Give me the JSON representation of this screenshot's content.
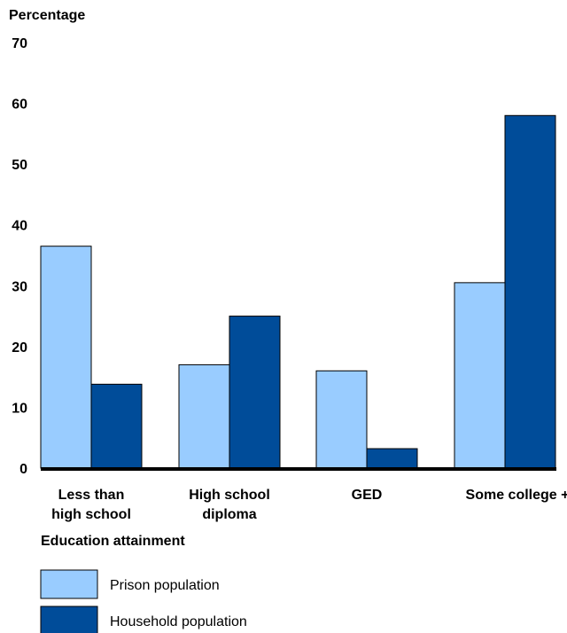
{
  "chart_data": {
    "type": "bar",
    "ylabel": "Percentage",
    "xlabel": "Education attainment",
    "ylim": [
      0,
      70
    ],
    "yticks": [
      0,
      10,
      20,
      30,
      40,
      50,
      60,
      70
    ],
    "grid": false,
    "legend_position": "bottom-left",
    "categories": [
      [
        "Less than",
        "high school"
      ],
      [
        "High school",
        "diploma"
      ],
      [
        "GED"
      ],
      [
        "Some college +"
      ]
    ],
    "series": [
      {
        "name": "Prison population",
        "color": "#99ccff",
        "values": [
          36.5,
          17,
          16,
          30.5
        ]
      },
      {
        "name": "Household population",
        "color": "#004c99",
        "values": [
          13.8,
          25,
          3.2,
          58
        ]
      }
    ]
  }
}
